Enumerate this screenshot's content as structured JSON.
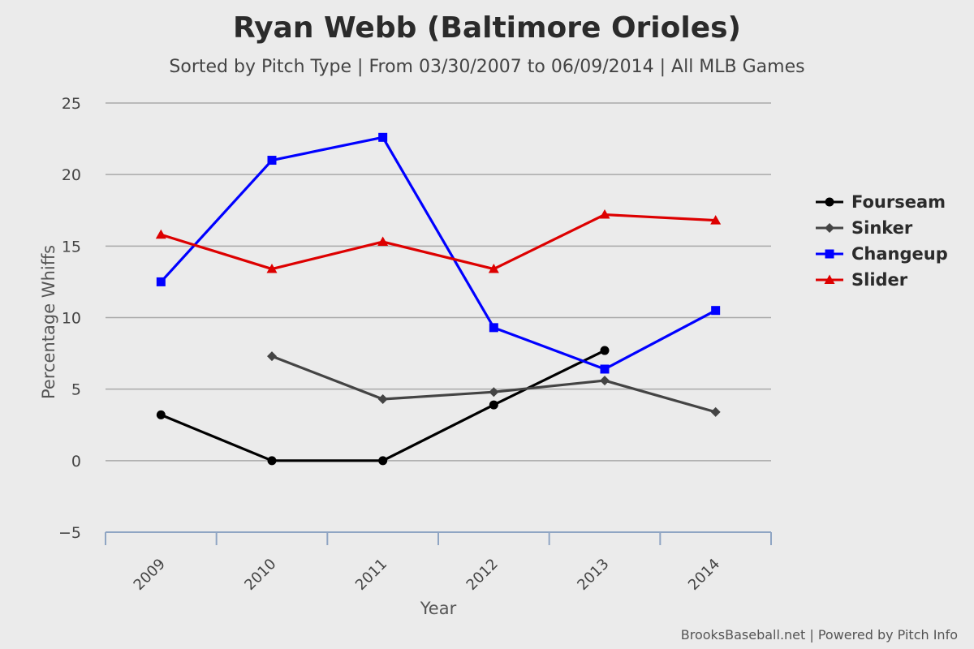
{
  "chart_data": {
    "type": "line",
    "title": "Ryan Webb (Baltimore Orioles)",
    "subtitle": "Sorted by Pitch Type | From 03/30/2007 to 06/09/2014 | All MLB Games",
    "xlabel": "Year",
    "ylabel": "Percentage Whiffs",
    "categories": [
      "2009",
      "2010",
      "2011",
      "2012",
      "2013",
      "2014"
    ],
    "ylim": [
      -5,
      25
    ],
    "yticks": [
      -5,
      0,
      5,
      10,
      15,
      20,
      25
    ],
    "grid": true,
    "legend_position": "right",
    "series": [
      {
        "name": "Fourseam",
        "color": "#000000",
        "marker": "circle",
        "values": [
          3.2,
          0.0,
          0.0,
          3.9,
          7.7,
          null
        ]
      },
      {
        "name": "Sinker",
        "color": "#444444",
        "marker": "diamond",
        "values": [
          null,
          7.3,
          4.3,
          4.8,
          5.6,
          3.4
        ]
      },
      {
        "name": "Changeup",
        "color": "#0000ff",
        "marker": "square",
        "values": [
          12.5,
          21.0,
          22.6,
          9.3,
          6.4,
          10.5
        ]
      },
      {
        "name": "Slider",
        "color": "#dd0000",
        "marker": "triangle",
        "values": [
          15.8,
          13.4,
          15.3,
          13.4,
          17.2,
          16.8
        ]
      }
    ]
  },
  "credit": "BrooksBaseball.net | Powered by Pitch Info"
}
